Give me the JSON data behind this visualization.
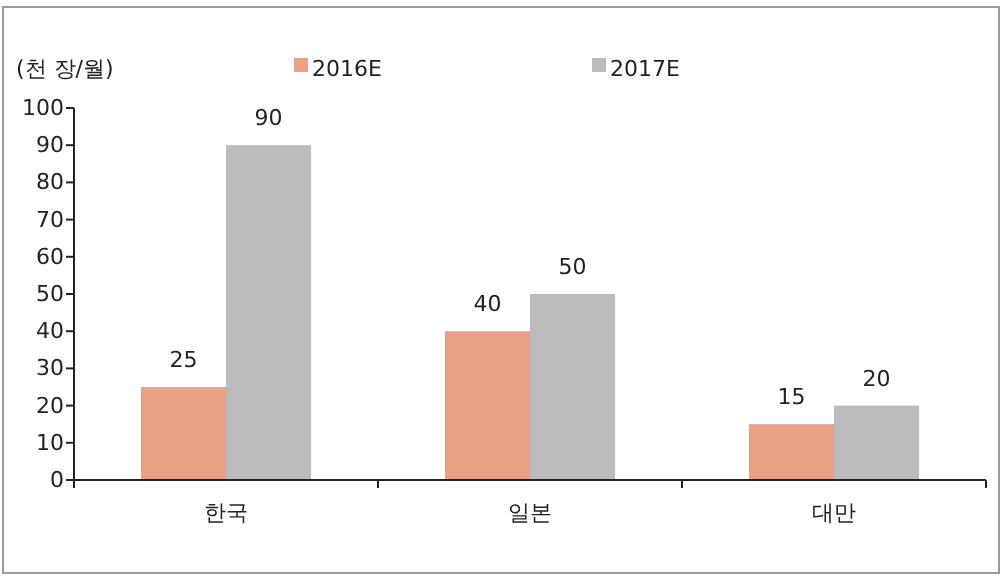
{
  "chart_data": {
    "type": "bar",
    "ylabel": "(천 장/월)",
    "categories": [
      "한국",
      "일본",
      "대만"
    ],
    "series": [
      {
        "name": "2016E",
        "color": "#e9a084",
        "values": [
          25,
          40,
          15
        ]
      },
      {
        "name": "2017E",
        "color": "#bcbcbe",
        "values": [
          90,
          50,
          20
        ]
      }
    ],
    "ylim": [
      0,
      100
    ],
    "yticks": [
      0,
      10,
      20,
      30,
      40,
      50,
      60,
      70,
      80,
      90,
      100
    ],
    "grid": false,
    "legend": "top",
    "data_labels": true
  }
}
